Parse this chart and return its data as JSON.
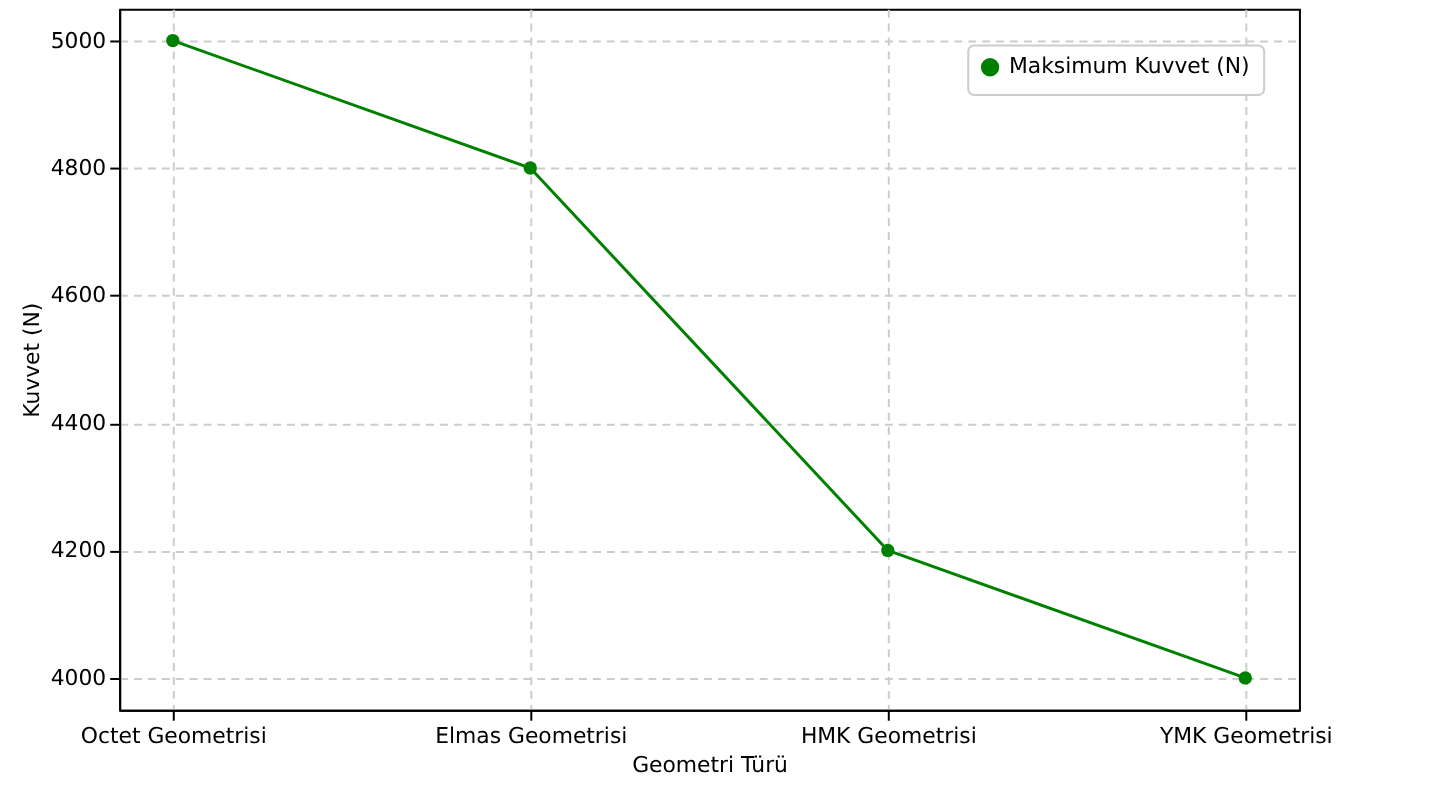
{
  "chart_data": {
    "type": "line",
    "xlabel": "Geometri Türü",
    "ylabel": "Kuvvet (N)",
    "categories": [
      "Octet Geometrisi",
      "Elmas Geometrisi",
      "HMK Geometrisi",
      "YMK Geometrisi"
    ],
    "series": [
      {
        "name": "Maksimum Kuvvet (N)",
        "color": "#008000",
        "values": [
          5000,
          4800,
          4200,
          4000
        ]
      }
    ],
    "ylim": [
      3950,
      5050
    ],
    "yticks": [
      4000,
      4200,
      4400,
      4600,
      4800,
      5000
    ],
    "grid": true,
    "legend": "top right",
    "marker": "circle",
    "line_style": "solid"
  }
}
